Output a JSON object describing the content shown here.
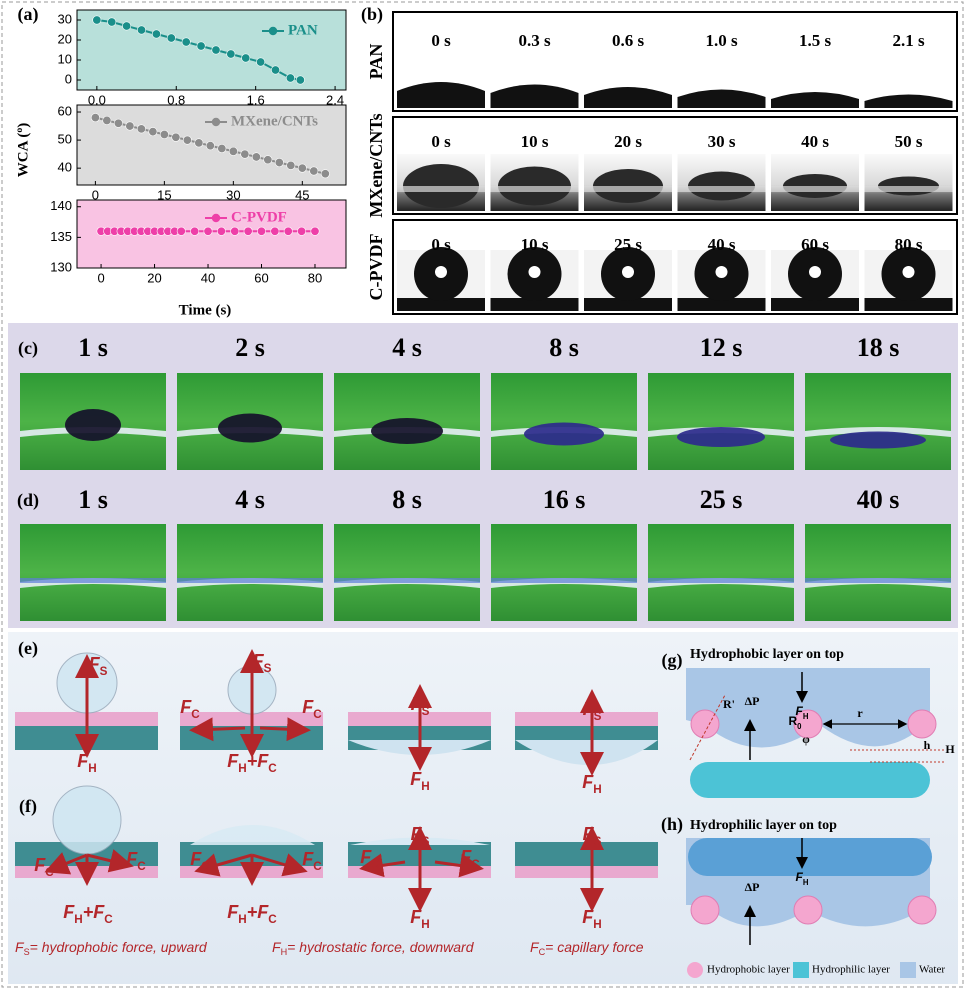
{
  "panel_a": {
    "label": "(a)",
    "ylabel": "WCA (º)",
    "xlabel": "Time (s)"
  },
  "chart_data": [
    {
      "type": "line",
      "xlim": [
        -0.2,
        2.51
      ],
      "ylim": [
        -5,
        35
      ],
      "xticks": [
        {
          "value": 0,
          "label": "0.0"
        },
        0.8,
        1.6,
        2.4
      ],
      "yticks": [
        0,
        10,
        20,
        30
      ],
      "x": [
        0,
        0.15,
        0.3,
        0.45,
        0.6,
        0.75,
        0.9,
        1.05,
        1.2,
        1.35,
        1.5,
        1.65,
        1.8,
        1.95,
        2.05
      ],
      "series": [
        {
          "name": "PAN",
          "color": "#1a8f8a",
          "values": [
            30,
            29,
            27,
            25,
            23,
            21,
            19,
            17,
            15,
            13,
            11,
            9,
            5,
            1,
            0
          ]
        }
      ]
    },
    {
      "type": "line",
      "xlim": [
        -4,
        54.5
      ],
      "ylim": [
        34,
        62.5
      ],
      "xticks": [
        0,
        15,
        30,
        45
      ],
      "yticks": [
        40,
        50,
        60
      ],
      "x": [
        0,
        2.5,
        5,
        7.5,
        10,
        12.5,
        15,
        17.5,
        20,
        22.5,
        25,
        27.5,
        30,
        32.5,
        35,
        37.5,
        40,
        42.5,
        45,
        47.5,
        50
      ],
      "series": [
        {
          "name": "MXene/CNTs",
          "color": "#8c8c8c",
          "values": [
            58,
            57,
            56,
            55,
            54,
            53,
            52,
            51,
            50,
            49,
            48,
            47,
            46,
            45,
            44,
            43,
            42,
            41,
            40,
            39,
            38
          ]
        }
      ]
    },
    {
      "type": "line",
      "xlim": [
        -9,
        91.6
      ],
      "ylim": [
        130,
        141.1
      ],
      "xticks": [
        0,
        20,
        40,
        60,
        80
      ],
      "yticks": [
        130,
        135,
        140
      ],
      "x": [
        0,
        2.5,
        5,
        7.5,
        10,
        12.5,
        15,
        17.5,
        20,
        22.5,
        25,
        27.5,
        30,
        35,
        40,
        45,
        50,
        55,
        60,
        65,
        70,
        75,
        80
      ],
      "series": [
        {
          "name": "C-PVDF",
          "color": "#ee3fa8",
          "values": [
            136,
            136,
            136,
            136,
            136,
            136,
            136,
            136,
            136,
            136,
            136,
            136,
            136,
            136,
            136,
            136,
            136,
            136,
            136,
            136,
            136,
            136,
            136
          ]
        }
      ]
    }
  ],
  "panel_b": {
    "label": "(b)",
    "rows": [
      {
        "name": "PAN",
        "times": [
          "0 s",
          "0.3 s",
          "0.6 s",
          "1.0 s",
          "1.5 s",
          "2.1 s"
        ]
      },
      {
        "name": "MXene/CNTs",
        "times": [
          "0 s",
          "10 s",
          "20 s",
          "30 s",
          "40 s",
          "50 s"
        ]
      },
      {
        "name": "C-PVDF",
        "times": [
          "0 s",
          "10 s",
          "25 s",
          "40 s",
          "60 s",
          "80 s"
        ]
      }
    ]
  },
  "panel_c": {
    "label": "(c)",
    "times": [
      "1 s",
      "2 s",
      "4 s",
      "8 s",
      "12 s",
      "18 s"
    ]
  },
  "panel_d": {
    "label": "(d)",
    "times": [
      "1 s",
      "4 s",
      "8 s",
      "16 s",
      "25 s",
      "40 s"
    ]
  },
  "panel_e": {
    "label": "(e)",
    "forces": [
      [
        {
          "text": "F"
        },
        {
          "sub": "S"
        }
      ],
      [
        {
          "text": "F"
        },
        {
          "sub": "H"
        }
      ],
      [
        {
          "text": "F"
        },
        {
          "sub": "S"
        }
      ],
      [
        {
          "text": "F"
        },
        {
          "sub": "C"
        }
      ],
      [
        {
          "text": "F"
        },
        {
          "sub": "C"
        }
      ],
      [
        {
          "text": "F"
        },
        {
          "sub": "H"
        },
        {
          "text": "+F"
        },
        {
          "sub": "C"
        }
      ],
      [
        {
          "text": "F"
        },
        {
          "sub": "S"
        }
      ],
      [
        {
          "text": "F"
        },
        {
          "sub": "H"
        }
      ],
      [
        {
          "text": "F"
        },
        {
          "sub": "S"
        }
      ],
      [
        {
          "text": "F"
        },
        {
          "sub": "H"
        }
      ]
    ]
  },
  "panel_f": {
    "label": "(f)",
    "forces": [
      [
        {
          "text": "F"
        },
        {
          "sub": "C"
        }
      ],
      [
        {
          "text": "F"
        },
        {
          "sub": "C"
        }
      ],
      [
        {
          "text": "F"
        },
        {
          "sub": "H"
        },
        {
          "text": "+F"
        },
        {
          "sub": "C"
        }
      ],
      [
        {
          "text": "F"
        },
        {
          "sub": "C"
        }
      ],
      [
        {
          "text": "F"
        },
        {
          "sub": "C"
        }
      ],
      [
        {
          "text": "F"
        },
        {
          "sub": "H"
        },
        {
          "text": "+F"
        },
        {
          "sub": "C"
        }
      ],
      [
        {
          "text": "F"
        },
        {
          "sub": "S"
        }
      ],
      [
        {
          "text": "F"
        },
        {
          "sub": "C"
        }
      ],
      [
        {
          "text": "F"
        },
        {
          "sub": "C"
        }
      ],
      [
        {
          "text": "F"
        },
        {
          "sub": "H"
        }
      ],
      [
        {
          "text": "F"
        },
        {
          "sub": "S"
        }
      ],
      [
        {
          "text": "F"
        },
        {
          "sub": "H"
        }
      ]
    ],
    "legend": [
      [
        {
          "text": "F"
        },
        {
          "sub": "S"
        },
        {
          "text": "= hydrophobic force, upward"
        }
      ],
      [
        {
          "text": "F"
        },
        {
          "sub": "H"
        },
        {
          "text": "= hydrostatic force, downward"
        }
      ],
      [
        {
          "text": "F"
        },
        {
          "sub": "C"
        },
        {
          "text": "= capillary force"
        }
      ]
    ]
  },
  "panel_g": {
    "label": "(g)",
    "title": "Hydrophobic layer on top",
    "fh": [
      {
        "text": "F"
      },
      {
        "sub": "H"
      }
    ],
    "r_prime": "R'",
    "dp": "ΔP",
    "r0": [
      {
        "text": "R"
      },
      {
        "sub": "0"
      }
    ],
    "r": "r",
    "phi": "φ",
    "h": "h",
    "big_h": "H"
  },
  "panel_h": {
    "label": "(h)",
    "title": "Hydrophilic layer on top",
    "fh": [
      {
        "text": "F"
      },
      {
        "sub": "H"
      }
    ],
    "dp": "ΔP",
    "legend": [
      "Hydrophobic layer",
      "Hydrophilic layer",
      "Water"
    ]
  }
}
